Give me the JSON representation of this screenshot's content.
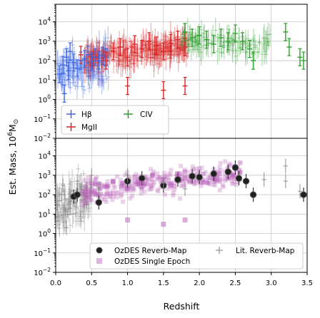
{
  "chart_data": [
    {
      "type": "scatter",
      "panel": "top",
      "xlim": [
        0.0,
        3.5
      ],
      "ylim": [
        0.01,
        80000
      ],
      "yscale": "log",
      "grid": true,
      "legend_position": "lower-left",
      "legend_columns": 2,
      "series": [
        {
          "name": "Hβ",
          "color": "#4169e1",
          "marker": "errorbar",
          "x": [
            0.05,
            0.1,
            0.12,
            0.15,
            0.18,
            0.2,
            0.25,
            0.3,
            0.35,
            0.4,
            0.45,
            0.5,
            0.55,
            0.6,
            0.65,
            0.7
          ],
          "y": [
            20,
            60,
            2,
            150,
            30,
            300,
            80,
            40,
            100,
            120,
            200,
            90,
            150,
            100,
            180,
            150
          ]
        },
        {
          "name": "MgII",
          "color": "#d62728",
          "marker": "errorbar",
          "x": [
            0.35,
            0.7,
            0.8,
            0.9,
            1.0,
            1.0,
            1.1,
            1.2,
            1.3,
            1.4,
            1.5,
            1.5,
            1.6,
            1.7,
            1.8,
            1.8
          ],
          "y": [
            200,
            100,
            300,
            500,
            150,
            5,
            700,
            400,
            1000,
            600,
            300,
            3,
            800,
            1200,
            500,
            5
          ]
        },
        {
          "name": "CIV",
          "color": "#2ca02c",
          "marker": "errorbar",
          "x": [
            1.8,
            1.9,
            2.0,
            2.1,
            2.2,
            2.3,
            2.4,
            2.5,
            2.6,
            2.7,
            2.75,
            3.2,
            3.25,
            3.4,
            3.45
          ],
          "y": [
            3000,
            1500,
            2000,
            1200,
            700,
            1500,
            1000,
            2500,
            1000,
            400,
            100,
            3000,
            500,
            150,
            100
          ]
        }
      ]
    },
    {
      "type": "scatter",
      "panel": "bottom",
      "xlim": [
        0.0,
        3.5
      ],
      "ylim": [
        0.01,
        80000
      ],
      "yscale": "log",
      "grid": true,
      "legend_position": "bottom-right",
      "legend_columns": 2,
      "series": [
        {
          "name": "OzDES Reverb-Map",
          "color": "#1f1f1f",
          "marker": "circle",
          "x": [
            0.25,
            0.3,
            0.6,
            1.0,
            1.2,
            1.5,
            1.7,
            1.9,
            2.0,
            2.2,
            2.4,
            2.5,
            2.55,
            2.65,
            2.75,
            3.45
          ],
          "y": [
            80,
            100,
            40,
            500,
            700,
            300,
            600,
            900,
            800,
            1200,
            1500,
            2500,
            700,
            500,
            100,
            100
          ]
        },
        {
          "name": "OzDES Single Epoch",
          "color": "#b85cb8",
          "marker": "square",
          "x": [
            0.45,
            0.6,
            0.8,
            1.0,
            1.1,
            1.2,
            1.35,
            1.5,
            1.6,
            1.7,
            1.8,
            1.5,
            1.0,
            1.8
          ],
          "y": [
            150,
            300,
            500,
            200,
            800,
            400,
            1000,
            600,
            300,
            1200,
            700,
            3,
            5,
            5
          ]
        },
        {
          "name": "Lit. Reverb-Map",
          "color": "#888888",
          "marker": "plus",
          "x": [
            0.02,
            0.05,
            0.08,
            0.1,
            0.15,
            0.2,
            0.3,
            0.5,
            0.6,
            1.0,
            1.5,
            1.8,
            2.9,
            3.2,
            3.2,
            3.4
          ],
          "y": [
            30,
            50,
            100,
            300,
            2,
            20,
            500,
            1000,
            200,
            1000,
            400,
            200,
            600,
            3000,
            500,
            150
          ]
        }
      ]
    }
  ],
  "axes": {
    "xlabel": "Redshift",
    "ylabel": "Est. Mass, 10",
    "ylabel_sup": "6",
    "ylabel_unit": "M",
    "ylabel_sub": "⊙",
    "xticks": [
      "0.0",
      "0.5",
      "1.0",
      "1.5",
      "2.0",
      "2.5",
      "3.0",
      "3.5"
    ],
    "yticks_base": "10",
    "yticks_exp": [
      "−2",
      "−1",
      "0",
      "1",
      "2",
      "3",
      "4"
    ]
  },
  "legend_top": [
    "Hβ",
    "MgII",
    "CIV"
  ],
  "legend_bottom": [
    "OzDES Reverb-Map",
    "OzDES Single Epoch",
    "Lit. Reverb-Map"
  ]
}
